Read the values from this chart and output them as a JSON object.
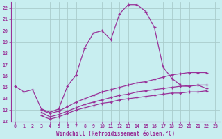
{
  "xlabel": "Windchill (Refroidissement éolien,°C)",
  "background_color": "#c8eef0",
  "line_color": "#993399",
  "grid_color": "#aacccc",
  "xlim": [
    -0.5,
    23.5
  ],
  "ylim": [
    12,
    22.5
  ],
  "xticks": [
    0,
    1,
    2,
    3,
    4,
    5,
    6,
    7,
    8,
    9,
    10,
    11,
    12,
    13,
    14,
    15,
    16,
    17,
    18,
    19,
    20,
    21,
    22,
    23
  ],
  "yticks": [
    12,
    13,
    14,
    15,
    16,
    17,
    18,
    19,
    20,
    21,
    22
  ],
  "series": [
    {
      "x": [
        0,
        1,
        2,
        3,
        4,
        5,
        6,
        7,
        8,
        9,
        10,
        11,
        12,
        13,
        14,
        15,
        16,
        17,
        18,
        19,
        20,
        21,
        22
      ],
      "y": [
        15.1,
        14.6,
        14.8,
        13.1,
        12.8,
        13.1,
        15.1,
        16.1,
        18.5,
        19.8,
        20.0,
        19.2,
        21.5,
        22.3,
        22.3,
        21.7,
        20.3,
        16.8,
        15.8,
        15.2,
        15.1,
        15.2,
        14.9
      ]
    },
    {
      "x": [
        3,
        4,
        5,
        6,
        7,
        8,
        9,
        10,
        11,
        12,
        13,
        14,
        15,
        16,
        17,
        18,
        19,
        20,
        21,
        22
      ],
      "y": [
        13.0,
        12.7,
        12.9,
        13.3,
        13.7,
        14.0,
        14.3,
        14.6,
        14.8,
        15.0,
        15.2,
        15.4,
        15.5,
        15.7,
        15.9,
        16.1,
        16.2,
        16.3,
        16.3,
        16.3
      ]
    },
    {
      "x": [
        3,
        4,
        5,
        6,
        7,
        8,
        9,
        10,
        11,
        12,
        13,
        14,
        15,
        16,
        17,
        18,
        19,
        20,
        21,
        22
      ],
      "y": [
        12.8,
        12.4,
        12.6,
        12.9,
        13.2,
        13.5,
        13.7,
        13.9,
        14.1,
        14.3,
        14.4,
        14.6,
        14.7,
        14.8,
        14.9,
        15.0,
        15.1,
        15.1,
        15.2,
        15.2
      ]
    },
    {
      "x": [
        3,
        4,
        5,
        6,
        7,
        8,
        9,
        10,
        11,
        12,
        13,
        14,
        15,
        16,
        17,
        18,
        19,
        20,
        21,
        22
      ],
      "y": [
        12.5,
        12.2,
        12.4,
        12.7,
        13.0,
        13.2,
        13.4,
        13.6,
        13.7,
        13.9,
        14.0,
        14.1,
        14.2,
        14.3,
        14.4,
        14.5,
        14.5,
        14.6,
        14.6,
        14.7
      ]
    }
  ]
}
